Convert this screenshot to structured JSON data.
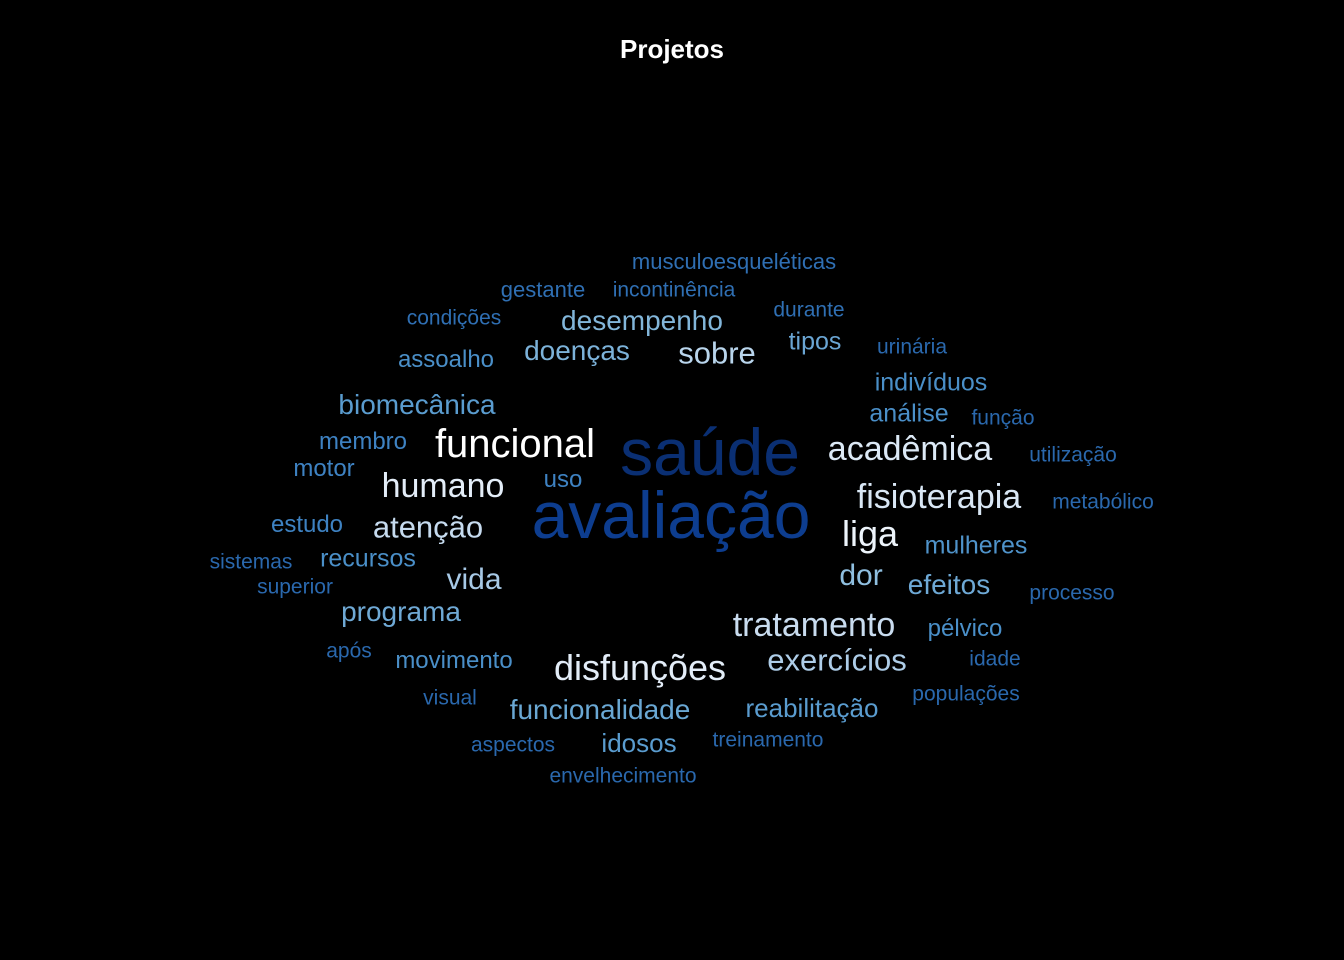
{
  "chart_data": {
    "type": "wordcloud",
    "title": "Projetos",
    "colors": {
      "background": "#000000",
      "title": "#ffffff"
    },
    "words": [
      {
        "text": "avaliação",
        "rank": 1,
        "color": "#0d3d8f"
      },
      {
        "text": "saúde",
        "rank": 1,
        "color": "#0a2f73"
      },
      {
        "text": "funcional",
        "rank": 2,
        "color": "#ffffff"
      },
      {
        "text": "disfunções",
        "rank": 3,
        "color": "#e3edf8"
      },
      {
        "text": "tratamento",
        "rank": 3,
        "color": "#c9dcef"
      },
      {
        "text": "acadêmica",
        "rank": 3,
        "color": "#dce9f6"
      },
      {
        "text": "fisioterapia",
        "rank": 3,
        "color": "#d9e7f5"
      },
      {
        "text": "humano",
        "rank": 3,
        "color": "#e3edf8"
      },
      {
        "text": "liga",
        "rank": 3,
        "color": "#edf4fb"
      },
      {
        "text": "exercícios",
        "rank": 4,
        "color": "#aecde8"
      },
      {
        "text": "atenção",
        "rank": 4,
        "color": "#c6dbef"
      },
      {
        "text": "sobre",
        "rank": 4,
        "color": "#b9d5ec"
      },
      {
        "text": "desempenho",
        "rank": 5,
        "color": "#82b6da"
      },
      {
        "text": "doenças",
        "rank": 5,
        "color": "#7cb2d9"
      },
      {
        "text": "funcionalidade",
        "rank": 5,
        "color": "#6aa8d4"
      },
      {
        "text": "vida",
        "rank": 5,
        "color": "#a7c9e6"
      },
      {
        "text": "dor",
        "rank": 5,
        "color": "#8fbfe0"
      },
      {
        "text": "efeitos",
        "rank": 5,
        "color": "#6ea9d6"
      },
      {
        "text": "programa",
        "rank": 5,
        "color": "#6fa9d5"
      },
      {
        "text": "biomecânica",
        "rank": 5,
        "color": "#5a9ccf"
      },
      {
        "text": "reabilitação",
        "rank": 6,
        "color": "#5a9ccf"
      },
      {
        "text": "idosos",
        "rank": 6,
        "color": "#5a9ccf"
      },
      {
        "text": "mulheres",
        "rank": 6,
        "color": "#4f93ca"
      },
      {
        "text": "indivíduos",
        "rank": 6,
        "color": "#4a8fc8"
      },
      {
        "text": "análise",
        "rank": 6,
        "color": "#4a8fc8"
      },
      {
        "text": "tipos",
        "rank": 6,
        "color": "#6aa5d3"
      },
      {
        "text": "assoalho",
        "rank": 6,
        "color": "#4a8fc8"
      },
      {
        "text": "membro",
        "rank": 6,
        "color": "#3e82c2"
      },
      {
        "text": "motor",
        "rank": 6,
        "color": "#3e82c2"
      },
      {
        "text": "estudo",
        "rank": 6,
        "color": "#3e82c2"
      },
      {
        "text": "recursos",
        "rank": 6,
        "color": "#4a8fc8"
      },
      {
        "text": "movimento",
        "rank": 6,
        "color": "#4a8fc8"
      },
      {
        "text": "pélvico",
        "rank": 6,
        "color": "#4a8fc8"
      },
      {
        "text": "uso",
        "rank": 6,
        "color": "#3e82c2"
      },
      {
        "text": "musculoesqueléticas",
        "rank": 7,
        "color": "#2f6fb3"
      },
      {
        "text": "gestante",
        "rank": 7,
        "color": "#2f6fb3"
      },
      {
        "text": "incontinência",
        "rank": 7,
        "color": "#2f6fb3"
      },
      {
        "text": "condições",
        "rank": 7,
        "color": "#2f6fb3"
      },
      {
        "text": "durante",
        "rank": 7,
        "color": "#2f6fb3"
      },
      {
        "text": "urinária",
        "rank": 7,
        "color": "#2a68ad"
      },
      {
        "text": "função",
        "rank": 7,
        "color": "#2a68ad"
      },
      {
        "text": "utilização",
        "rank": 7,
        "color": "#2a68ad"
      },
      {
        "text": "metabólico",
        "rank": 7,
        "color": "#2a68ad"
      },
      {
        "text": "sistemas",
        "rank": 7,
        "color": "#2a68ad"
      },
      {
        "text": "superior",
        "rank": 7,
        "color": "#2a68ad"
      },
      {
        "text": "processo",
        "rank": 7,
        "color": "#2a68ad"
      },
      {
        "text": "após",
        "rank": 7,
        "color": "#2a68ad"
      },
      {
        "text": "idade",
        "rank": 7,
        "color": "#2a68ad"
      },
      {
        "text": "visual",
        "rank": 7,
        "color": "#2a68ad"
      },
      {
        "text": "populações",
        "rank": 7,
        "color": "#2a68ad"
      },
      {
        "text": "aspectos",
        "rank": 7,
        "color": "#2a68ad"
      },
      {
        "text": "treinamento",
        "rank": 7,
        "color": "#2a68ad"
      },
      {
        "text": "envelhecimento",
        "rank": 7,
        "color": "#2a68ad"
      }
    ]
  }
}
